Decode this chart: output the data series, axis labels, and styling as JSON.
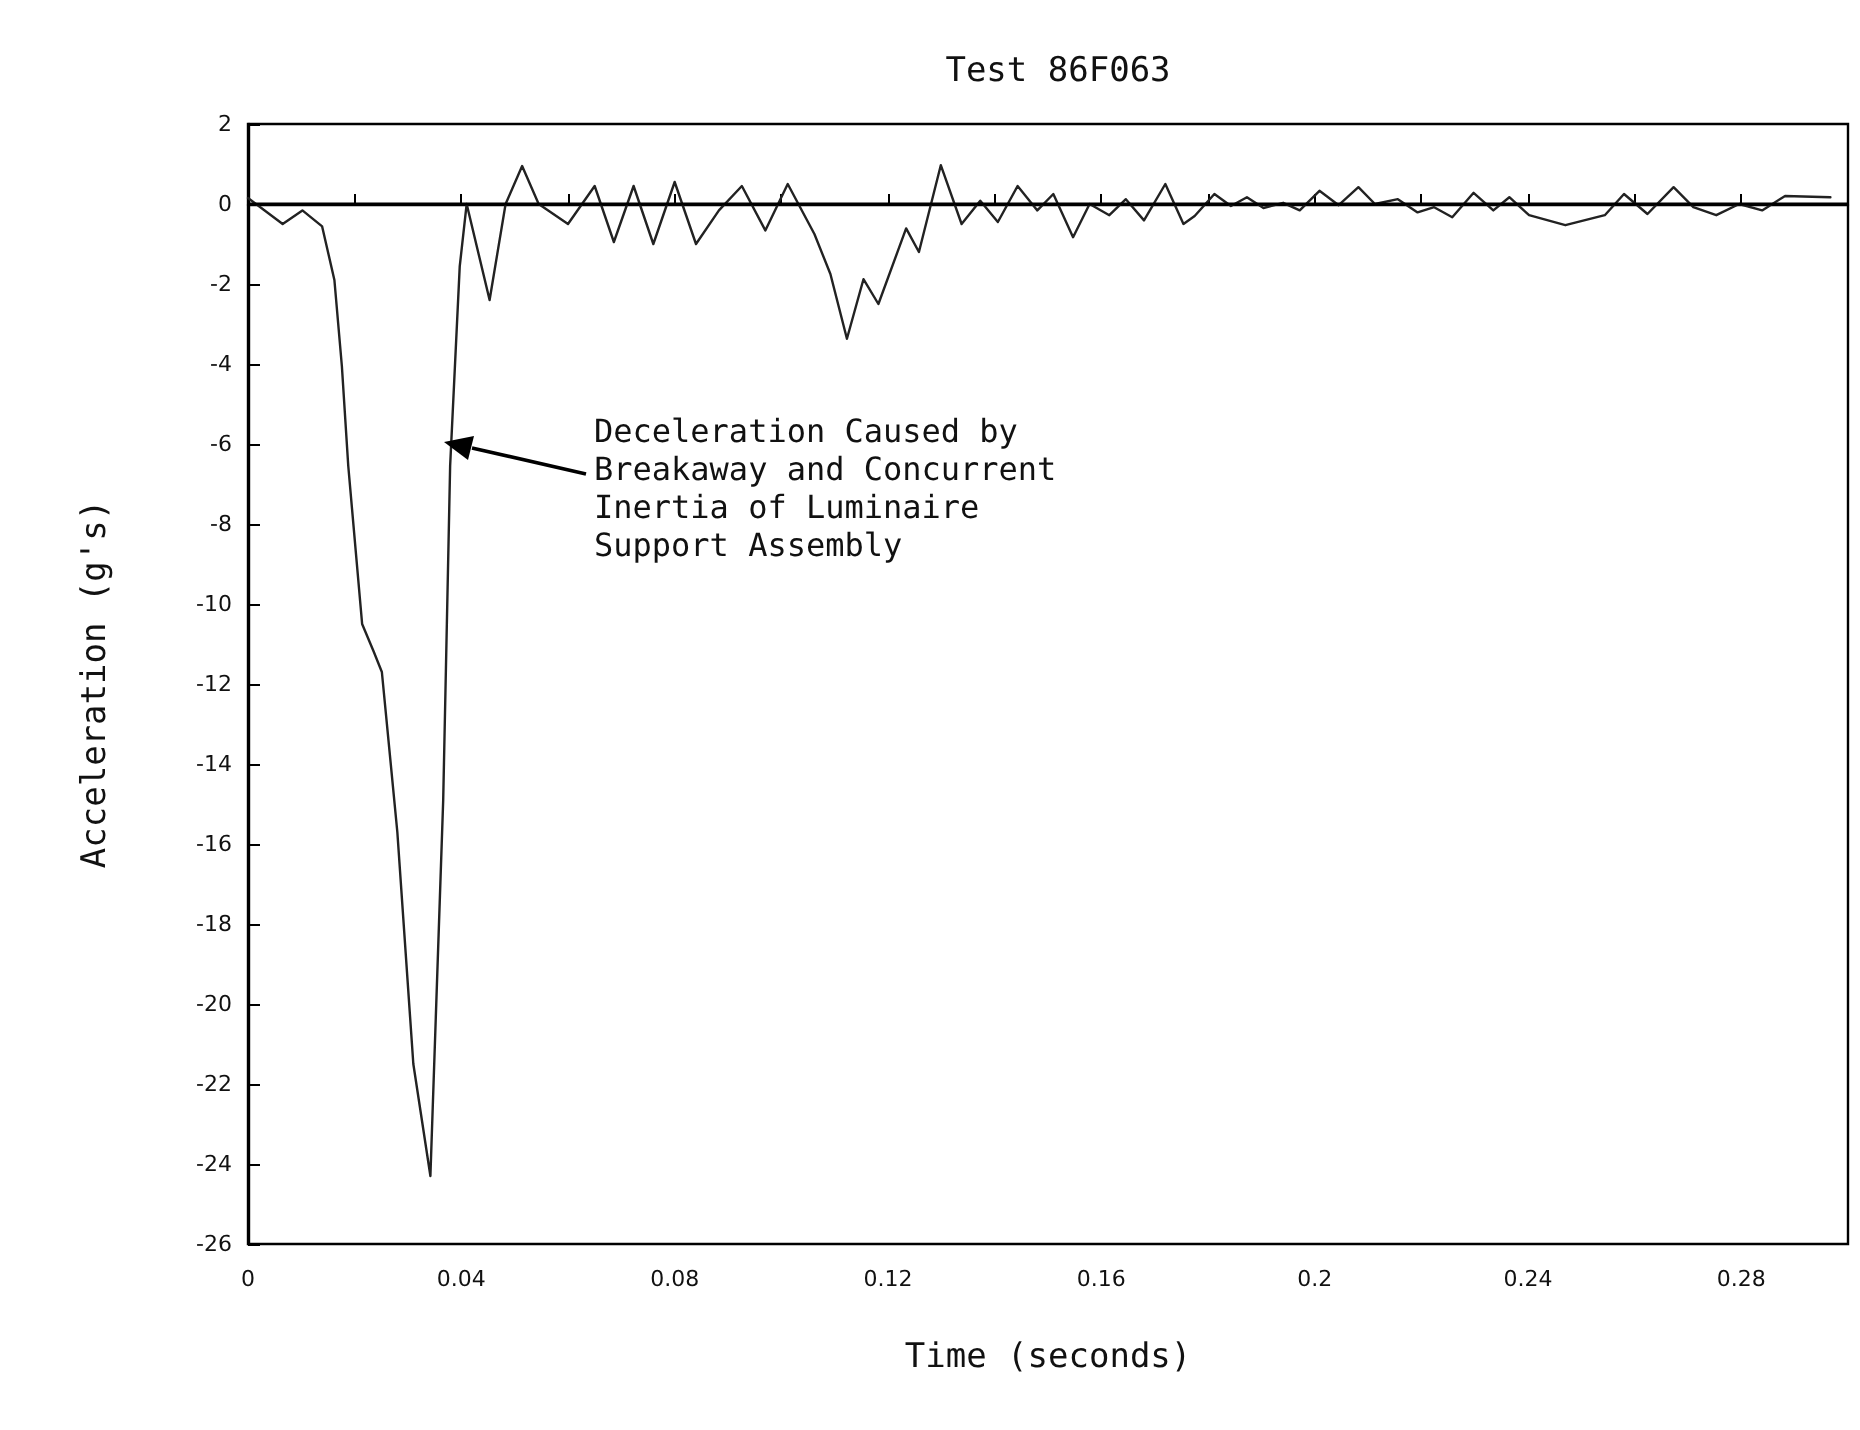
{
  "chart_data": {
    "type": "line",
    "title": "Test 86F063",
    "xlabel": "Time (seconds)",
    "ylabel": "Acceleration (g's)",
    "x": [
      0,
      0.0065,
      0.0102,
      0.0139,
      0.0162,
      0.0176,
      0.0188,
      0.0214,
      0.0236,
      0.0251,
      0.028,
      0.031,
      0.0342,
      0.0366,
      0.0379,
      0.0397,
      0.041,
      0.0453,
      0.0483,
      0.0514,
      0.0545,
      0.06,
      0.065,
      0.0686,
      0.0723,
      0.076,
      0.08,
      0.084,
      0.0883,
      0.0926,
      0.097,
      0.1012,
      0.1062,
      0.1092,
      0.1123,
      0.1154,
      0.1182,
      0.1234,
      0.1258,
      0.1299,
      0.1338,
      0.1373,
      0.1406,
      0.1443,
      0.148,
      0.151,
      0.1547,
      0.1578,
      0.1615,
      0.1646,
      0.168,
      0.172,
      0.1754,
      0.1775,
      0.1812,
      0.1843,
      0.1873,
      0.1904,
      0.1941,
      0.1972,
      0.2009,
      0.2045,
      0.2082,
      0.2113,
      0.2156,
      0.2193,
      0.2224,
      0.2258,
      0.2298,
      0.2335,
      0.2365,
      0.2402,
      0.247,
      0.2544,
      0.258,
      0.2624,
      0.2673,
      0.271,
      0.2753,
      0.2796,
      0.2839,
      0.2882,
      0.2967
    ],
    "series": [
      {
        "color": "#222222",
        "values": [
          0.15,
          -0.5,
          -0.16,
          -0.56,
          -1.9,
          -4.05,
          -6.55,
          -10.5,
          -11.2,
          -11.7,
          -15.7,
          -21.5,
          -24.3,
          -14.9,
          -6.55,
          -1.56,
          0,
          -2.4,
          0,
          0.95,
          0,
          -0.5,
          0.45,
          -0.95,
          0.45,
          -1.0,
          0.55,
          -1.0,
          -0.16,
          0.45,
          -0.66,
          0.5,
          -0.75,
          -1.75,
          -3.37,
          -1.88,
          -2.5,
          -0.61,
          -1.2,
          0.97,
          -0.5,
          0.08,
          -0.45,
          0.45,
          -0.16,
          0.25,
          -0.83,
          0,
          -0.28,
          0.12,
          -0.41,
          0.5,
          -0.5,
          -0.3,
          0.25,
          -0.05,
          0.17,
          -0.1,
          0.03,
          -0.16,
          0.33,
          -0.03,
          0.42,
          0,
          0.12,
          -0.21,
          -0.08,
          -0.33,
          0.28,
          -0.16,
          0.17,
          -0.28,
          -0.53,
          -0.28,
          0.25,
          -0.25,
          0.42,
          -0.08,
          -0.28,
          0,
          -0.16,
          0.2,
          0.17
        ]
      }
    ],
    "xlim": [
      0,
      0.3
    ],
    "ylim": [
      -26,
      2
    ],
    "xticks": [
      0,
      {
        "value": 0.02,
        "label": null
      },
      0.04,
      {
        "value": 0.06,
        "label": null
      },
      0.08,
      {
        "value": 0.1,
        "label": null
      },
      0.12,
      {
        "value": 0.14,
        "label": null
      },
      0.16,
      {
        "value": 0.18,
        "label": null
      },
      0.2,
      {
        "value": 0.22,
        "label": null
      },
      0.24,
      {
        "value": 0.26,
        "label": null
      },
      0.28
    ],
    "yticks": [
      2,
      0,
      -2,
      -4,
      -6,
      -8,
      -10,
      -12,
      -14,
      -16,
      -18,
      -20,
      -22,
      -24,
      -26
    ],
    "ref_lines": [
      {
        "axis": "y",
        "value": 0,
        "color": "#000000"
      }
    ],
    "annotations": [
      "Deceleration Caused by\nBreakaway and Concurrent\nInertia of Luminaire\nSupport Assembly"
    ],
    "grid": false,
    "marker": "none",
    "line_style": "solid"
  }
}
